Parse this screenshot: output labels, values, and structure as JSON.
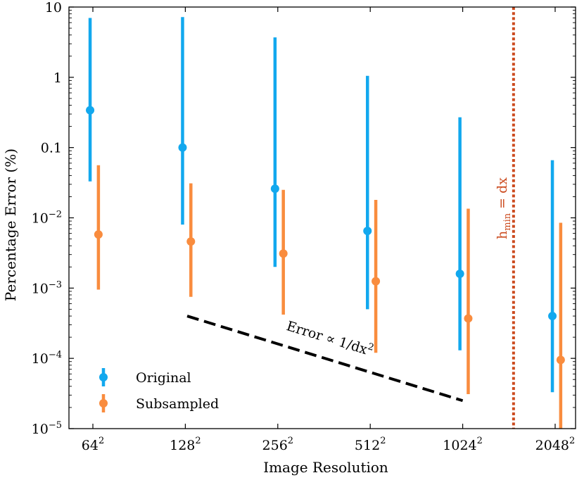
{
  "chart_data": {
    "type": "errorbar",
    "title": "",
    "xlabel": "Image Resolution",
    "ylabel": "Percentage Error (%)",
    "yscale": "log",
    "ylim": [
      1e-05,
      10
    ],
    "categories": [
      "64",
      "128",
      "256",
      "512",
      "1024",
      "2048"
    ],
    "category_exponent": "2",
    "y_ticks": [
      {
        "value": 1e-05,
        "base": "10",
        "exp": "−5"
      },
      {
        "value": 0.0001,
        "base": "10",
        "exp": "−4"
      },
      {
        "value": 0.001,
        "base": "10",
        "exp": "−3"
      },
      {
        "value": 0.01,
        "base": "10",
        "exp": "−2"
      },
      {
        "value": 0.1,
        "base": "0.1",
        "exp": ""
      },
      {
        "value": 1,
        "base": "1",
        "exp": ""
      },
      {
        "value": 10,
        "base": "10",
        "exp": ""
      }
    ],
    "series": [
      {
        "name": "Original",
        "color": "#12a8ee",
        "offset": -0.03,
        "values": [
          0.34,
          0.1,
          0.026,
          0.0065,
          0.0016,
          0.0004
        ],
        "lower": [
          0.033,
          0.008,
          0.002,
          0.0005,
          0.00013,
          3.3e-05
        ],
        "upper": [
          7.0,
          7.2,
          3.7,
          1.05,
          0.27,
          0.066
        ]
      },
      {
        "name": "Subsampled",
        "color": "#f98c3e",
        "offset": 0.06,
        "values": [
          0.0058,
          0.0046,
          0.0031,
          0.00125,
          0.00037,
          9.5e-05
        ],
        "lower": [
          0.00095,
          0.00075,
          0.00042,
          0.00012,
          3.1e-05,
          1e-05
        ],
        "upper": [
          0.056,
          0.031,
          0.025,
          0.018,
          0.0135,
          0.0085
        ]
      }
    ],
    "reference_line": {
      "label": "Error ∝ 1/dx",
      "label_exp": "2",
      "x_start": 1.02,
      "x_end": 4.0,
      "y_start": 0.0004,
      "y_end": 2.5e-05,
      "color": "#000000"
    },
    "vertical_line": {
      "x": 4.55,
      "label_main": "h",
      "label_sub": "min",
      "label_rest": " = dx",
      "color": "#cc4b1f"
    },
    "legend": {
      "position": "lower-left",
      "entries": [
        "Original",
        "Subsampled"
      ]
    }
  }
}
